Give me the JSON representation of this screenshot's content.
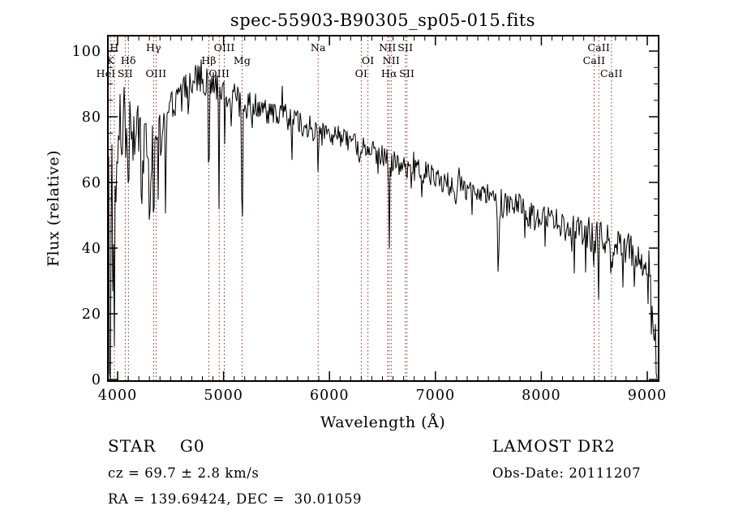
{
  "annotations": {
    "class_label": "STAR    G0",
    "cz": "cz = 69.7 ± 2.8 km/s",
    "radec": "RA = 139.69424, DEC =  30.01059",
    "survey": "LAMOST DR2",
    "obs_date": "Obs-Date: 20111207"
  },
  "colors": {
    "spectrum": "#000000",
    "axis": "#000000",
    "marker_line": "#932b2b",
    "background": "#ffffff"
  },
  "chart_data": {
    "type": "line",
    "title": "spec-55903-B90305_sp05-015.fits",
    "xlabel": "Wavelength (Å)",
    "ylabel": "Flux (relative)",
    "xlim": [
      3908,
      9107
    ],
    "ylim": [
      0,
      100
    ],
    "xticks": [
      4000,
      5000,
      6000,
      7000,
      8000,
      9000
    ],
    "yticks": [
      0,
      20,
      40,
      60,
      80,
      100
    ],
    "x_minor_step": 100,
    "y_minor_step": 5,
    "grid": false,
    "legend": false,
    "line_markers": [
      {
        "label": "H",
        "wl": 3969,
        "row": 1
      },
      {
        "label": "K",
        "wl": 3934,
        "row": 2
      },
      {
        "label": "HeI",
        "wl": 3889,
        "row": 3
      },
      {
        "label": "SII",
        "wl": 4072,
        "row": 3
      },
      {
        "label": "Hδ",
        "wl": 4102,
        "row": 2
      },
      {
        "label": "Hγ",
        "wl": 4340,
        "row": 1
      },
      {
        "label": "OIII",
        "wl": 4363,
        "row": 3
      },
      {
        "label": "Hβ",
        "wl": 4861,
        "row": 2
      },
      {
        "label": "OIII",
        "wl": 4959,
        "row": 3
      },
      {
        "label": "OIII",
        "wl": 5007,
        "row": 1
      },
      {
        "label": "Mg",
        "wl": 5175,
        "row": 2
      },
      {
        "label": "Na",
        "wl": 5893,
        "row": 1
      },
      {
        "label": "OI",
        "wl": 6300,
        "row": 3
      },
      {
        "label": "OI",
        "wl": 6363,
        "row": 2
      },
      {
        "label": "NII",
        "wl": 6548,
        "row": 1
      },
      {
        "label": "Hα",
        "wl": 6563,
        "row": 3
      },
      {
        "label": "NII",
        "wl": 6583,
        "row": 2
      },
      {
        "label": "SII",
        "wl": 6716,
        "row": 1
      },
      {
        "label": "SII",
        "wl": 6731,
        "row": 3
      },
      {
        "label": "CaII",
        "wl": 8498,
        "row": 2
      },
      {
        "label": "CaII",
        "wl": 8542,
        "row": 1
      },
      {
        "label": "CaII",
        "wl": 8662,
        "row": 3
      }
    ],
    "continuum": [
      [
        3908,
        62
      ],
      [
        3925,
        52
      ],
      [
        3945,
        56
      ],
      [
        3965,
        58
      ],
      [
        3985,
        68
      ],
      [
        4020,
        77
      ],
      [
        4050,
        80
      ],
      [
        4085,
        78
      ],
      [
        4120,
        77
      ],
      [
        4160,
        77
      ],
      [
        4200,
        75
      ],
      [
        4240,
        71
      ],
      [
        4280,
        69
      ],
      [
        4320,
        70
      ],
      [
        4360,
        74
      ],
      [
        4400,
        77
      ],
      [
        4450,
        81
      ],
      [
        4510,
        85
      ],
      [
        4570,
        86
      ],
      [
        4630,
        87
      ],
      [
        4700,
        90
      ],
      [
        4770,
        91
      ],
      [
        4840,
        91
      ],
      [
        4910,
        89
      ],
      [
        4980,
        88
      ],
      [
        5050,
        87
      ],
      [
        5120,
        86
      ],
      [
        5190,
        84
      ],
      [
        5260,
        84
      ],
      [
        5330,
        83
      ],
      [
        5400,
        82
      ],
      [
        5500,
        81
      ],
      [
        5600,
        80
      ],
      [
        5700,
        78
      ],
      [
        5800,
        77
      ],
      [
        5900,
        76
      ],
      [
        6000,
        75
      ],
      [
        6100,
        74
      ],
      [
        6200,
        72
      ],
      [
        6300,
        71
      ],
      [
        6400,
        70
      ],
      [
        6500,
        68
      ],
      [
        6600,
        67
      ],
      [
        6700,
        65
      ],
      [
        6800,
        64
      ],
      [
        6900,
        63
      ],
      [
        7000,
        62
      ],
      [
        7100,
        60
      ],
      [
        7200,
        59
      ],
      [
        7300,
        58
      ],
      [
        7400,
        57
      ],
      [
        7500,
        56
      ],
      [
        7600,
        54
      ],
      [
        7700,
        53
      ],
      [
        7800,
        52
      ],
      [
        7900,
        50
      ],
      [
        8000,
        49
      ],
      [
        8100,
        48
      ],
      [
        8200,
        47
      ],
      [
        8300,
        46
      ],
      [
        8400,
        45
      ],
      [
        8500,
        44
      ],
      [
        8600,
        43
      ],
      [
        8700,
        42
      ],
      [
        8800,
        40
      ],
      [
        8900,
        38
      ],
      [
        8960,
        36
      ],
      [
        9000,
        33
      ],
      [
        9030,
        26
      ],
      [
        9060,
        14
      ],
      [
        9085,
        6
      ],
      [
        9107,
        3
      ]
    ],
    "absorption_features": [
      {
        "wl": 3920,
        "depth": 25,
        "sigma": 4
      },
      {
        "wl": 3934,
        "depth": 46,
        "sigma": 6
      },
      {
        "wl": 3969,
        "depth": 42,
        "sigma": 6
      },
      {
        "wl": 4046,
        "depth": 16,
        "sigma": 2.5
      },
      {
        "wl": 4102,
        "depth": 26,
        "sigma": 4
      },
      {
        "wl": 4144,
        "depth": 14,
        "sigma": 2.5
      },
      {
        "wl": 4226,
        "depth": 20,
        "sigma": 3
      },
      {
        "wl": 4300,
        "depth": 26,
        "sigma": 5
      },
      {
        "wl": 4340,
        "depth": 30,
        "sigma": 4
      },
      {
        "wl": 4383,
        "depth": 22,
        "sigma": 3
      },
      {
        "wl": 4455,
        "depth": 40,
        "sigma": 3
      },
      {
        "wl": 4520,
        "depth": 12,
        "sigma": 3
      },
      {
        "wl": 4668,
        "depth": 10,
        "sigma": 2.5
      },
      {
        "wl": 4861,
        "depth": 32,
        "sigma": 4
      },
      {
        "wl": 4957,
        "depth": 30,
        "sigma": 2.5
      },
      {
        "wl": 5175,
        "depth": 40,
        "sigma": 3
      },
      {
        "wl": 5178,
        "depth": 10,
        "sigma": 10
      },
      {
        "wl": 5270,
        "depth": 9,
        "sigma": 3
      },
      {
        "wl": 5893,
        "depth": 15,
        "sigma": 4
      },
      {
        "wl": 6280,
        "depth": 7,
        "sigma": 3
      },
      {
        "wl": 6563,
        "depth": 20,
        "sigma": 5
      },
      {
        "wl": 7186,
        "depth": 7,
        "sigma": 5
      },
      {
        "wl": 7594,
        "depth": 13,
        "sigma": 7
      },
      {
        "wl": 8230,
        "depth": 8,
        "sigma": 4
      },
      {
        "wl": 8498,
        "depth": 14,
        "sigma": 5
      },
      {
        "wl": 8542,
        "depth": 16,
        "sigma": 5
      },
      {
        "wl": 8662,
        "depth": 14,
        "sigma": 5
      },
      {
        "wl": 8770,
        "depth": 9,
        "sigma": 4
      },
      {
        "wl": 8880,
        "depth": 10,
        "sigma": 5
      }
    ],
    "noise_regions": [
      {
        "from": 3908,
        "to": 3995,
        "amp": 30
      },
      {
        "from": 3995,
        "to": 4090,
        "amp": 11
      },
      {
        "from": 4090,
        "to": 4240,
        "amp": 9
      },
      {
        "from": 4240,
        "to": 4470,
        "amp": 10
      },
      {
        "from": 4470,
        "to": 5230,
        "amp": 5.5
      },
      {
        "from": 5230,
        "to": 5920,
        "amp": 4
      },
      {
        "from": 5920,
        "to": 6570,
        "amp": 3.5
      },
      {
        "from": 6570,
        "to": 7620,
        "amp": 3.5
      },
      {
        "from": 7620,
        "to": 8420,
        "amp": 4.5
      },
      {
        "from": 8420,
        "to": 9000,
        "amp": 5
      },
      {
        "from": 9000,
        "to": 9107,
        "amp": 11
      }
    ],
    "noise_seed": 20111207,
    "spike_prob": 0.05,
    "spike_scale": 2.5,
    "up_prob": 0.03,
    "up_scale": 1.5
  }
}
